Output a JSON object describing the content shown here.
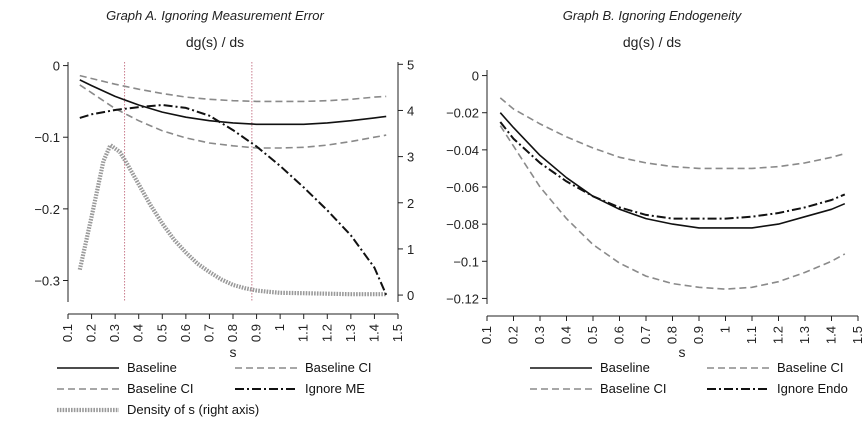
{
  "chart_data": [
    {
      "type": "line",
      "title": "Graph A. Ignoring Measurement Error",
      "subtitle": "dg(s) / ds",
      "xlabel": "s",
      "x_ticks": [
        "0.1",
        "0.2",
        "0.3",
        "0.4",
        "0.5",
        "0.6",
        "0.7",
        "0.8",
        "0.9",
        "1",
        "1.1",
        "1.2",
        "1.3",
        "1.4",
        "1.5"
      ],
      "y_ticks": [
        "0",
        "−0.1",
        "−0.2",
        "−0.3"
      ],
      "y2_ticks": [
        "5",
        "4",
        "3",
        "2",
        "1",
        "0"
      ],
      "xlim": [
        0.1,
        1.5
      ],
      "ylim": [
        -0.33,
        0.005
      ],
      "y2lim": [
        -0.15,
        5.05
      ],
      "vlines": [
        0.34,
        0.88
      ],
      "x": [
        0.15,
        0.2,
        0.3,
        0.4,
        0.5,
        0.6,
        0.7,
        0.8,
        0.9,
        1.0,
        1.1,
        1.2,
        1.3,
        1.4,
        1.45
      ],
      "series": [
        {
          "name": "Baseline",
          "style": "solid",
          "color": "#111111",
          "values": [
            -0.02,
            -0.028,
            -0.043,
            -0.055,
            -0.065,
            -0.072,
            -0.077,
            -0.08,
            -0.082,
            -0.082,
            -0.082,
            -0.08,
            -0.077,
            -0.073,
            -0.071
          ]
        },
        {
          "name": "Baseline CI",
          "style": "dash",
          "color": "#8a8a8a",
          "values": [
            -0.014,
            -0.018,
            -0.026,
            -0.033,
            -0.039,
            -0.044,
            -0.047,
            -0.049,
            -0.05,
            -0.05,
            -0.05,
            -0.049,
            -0.047,
            -0.044,
            -0.043
          ]
        },
        {
          "name": "Baseline CI",
          "style": "dash",
          "color": "#8a8a8a",
          "values": [
            -0.027,
            -0.038,
            -0.06,
            -0.077,
            -0.091,
            -0.101,
            -0.108,
            -0.112,
            -0.115,
            -0.115,
            -0.114,
            -0.111,
            -0.106,
            -0.1,
            -0.097
          ]
        },
        {
          "name": "Ignore ME",
          "style": "dashdot",
          "color": "#111111",
          "values": [
            -0.073,
            -0.068,
            -0.062,
            -0.058,
            -0.055,
            -0.059,
            -0.07,
            -0.09,
            -0.113,
            -0.14,
            -0.17,
            -0.202,
            -0.237,
            -0.282,
            -0.32
          ]
        },
        {
          "name": "Density of s (right axis)",
          "style": "dotted",
          "color": "#9a9a9a",
          "axis": "right",
          "x": [
            0.15,
            0.2,
            0.25,
            0.28,
            0.32,
            0.35,
            0.4,
            0.45,
            0.5,
            0.55,
            0.6,
            0.65,
            0.7,
            0.75,
            0.8,
            0.85,
            0.9,
            0.95,
            1.0,
            1.1,
            1.2,
            1.3,
            1.4,
            1.45
          ],
          "values": [
            0.55,
            1.7,
            2.9,
            3.25,
            3.1,
            2.85,
            2.4,
            1.95,
            1.55,
            1.2,
            0.92,
            0.68,
            0.5,
            0.34,
            0.22,
            0.15,
            0.1,
            0.07,
            0.05,
            0.04,
            0.03,
            0.02,
            0.02,
            0.02
          ]
        }
      ],
      "legend": [
        {
          "label": "Baseline",
          "style": "solid"
        },
        {
          "label": "Baseline CI",
          "style": "dash"
        },
        {
          "label": "Baseline CI",
          "style": "dash"
        },
        {
          "label": "Ignore ME",
          "style": "dashdot"
        },
        {
          "label": "Density of s (right axis)",
          "style": "dotted"
        }
      ]
    },
    {
      "type": "line",
      "title": "Graph B. Ignoring Endogeneity",
      "subtitle": "dg(s) / ds",
      "xlabel": "s",
      "x_ticks": [
        "0.1",
        "0.2",
        "0.3",
        "0.4",
        "0.5",
        "0.6",
        "0.7",
        "0.8",
        "0.9",
        "1",
        "1.1",
        "1.2",
        "1.3",
        "1.4",
        "1.5"
      ],
      "y_ticks": [
        "0",
        "−0.02",
        "−0.04",
        "−0.06",
        "−0.08",
        "−0.1",
        "−0.12"
      ],
      "xlim": [
        0.1,
        1.5
      ],
      "ylim": [
        -0.123,
        0.003
      ],
      "x": [
        0.15,
        0.2,
        0.3,
        0.4,
        0.5,
        0.6,
        0.7,
        0.8,
        0.9,
        1.0,
        1.1,
        1.2,
        1.3,
        1.4,
        1.45
      ],
      "series": [
        {
          "name": "Baseline",
          "style": "solid",
          "color": "#111111",
          "values": [
            -0.02,
            -0.028,
            -0.043,
            -0.055,
            -0.065,
            -0.072,
            -0.077,
            -0.08,
            -0.082,
            -0.082,
            -0.082,
            -0.08,
            -0.076,
            -0.072,
            -0.069
          ]
        },
        {
          "name": "Baseline CI",
          "style": "dash",
          "color": "#8a8a8a",
          "values": [
            -0.012,
            -0.018,
            -0.026,
            -0.033,
            -0.039,
            -0.044,
            -0.047,
            -0.049,
            -0.05,
            -0.05,
            -0.05,
            -0.049,
            -0.047,
            -0.044,
            -0.042
          ]
        },
        {
          "name": "Baseline CI",
          "style": "dash",
          "color": "#8a8a8a",
          "values": [
            -0.027,
            -0.038,
            -0.06,
            -0.077,
            -0.091,
            -0.101,
            -0.108,
            -0.112,
            -0.114,
            -0.115,
            -0.114,
            -0.111,
            -0.106,
            -0.1,
            -0.096
          ]
        },
        {
          "name": "Ignore Endo",
          "style": "dashdot",
          "color": "#111111",
          "values": [
            -0.025,
            -0.034,
            -0.047,
            -0.057,
            -0.065,
            -0.071,
            -0.075,
            -0.077,
            -0.077,
            -0.077,
            -0.076,
            -0.074,
            -0.071,
            -0.067,
            -0.064
          ]
        }
      ],
      "legend": [
        {
          "label": "Baseline",
          "style": "solid"
        },
        {
          "label": "Baseline CI",
          "style": "dash"
        },
        {
          "label": "Baseline CI",
          "style": "dash"
        },
        {
          "label": "Ignore Endo",
          "style": "dashdot"
        }
      ]
    }
  ]
}
